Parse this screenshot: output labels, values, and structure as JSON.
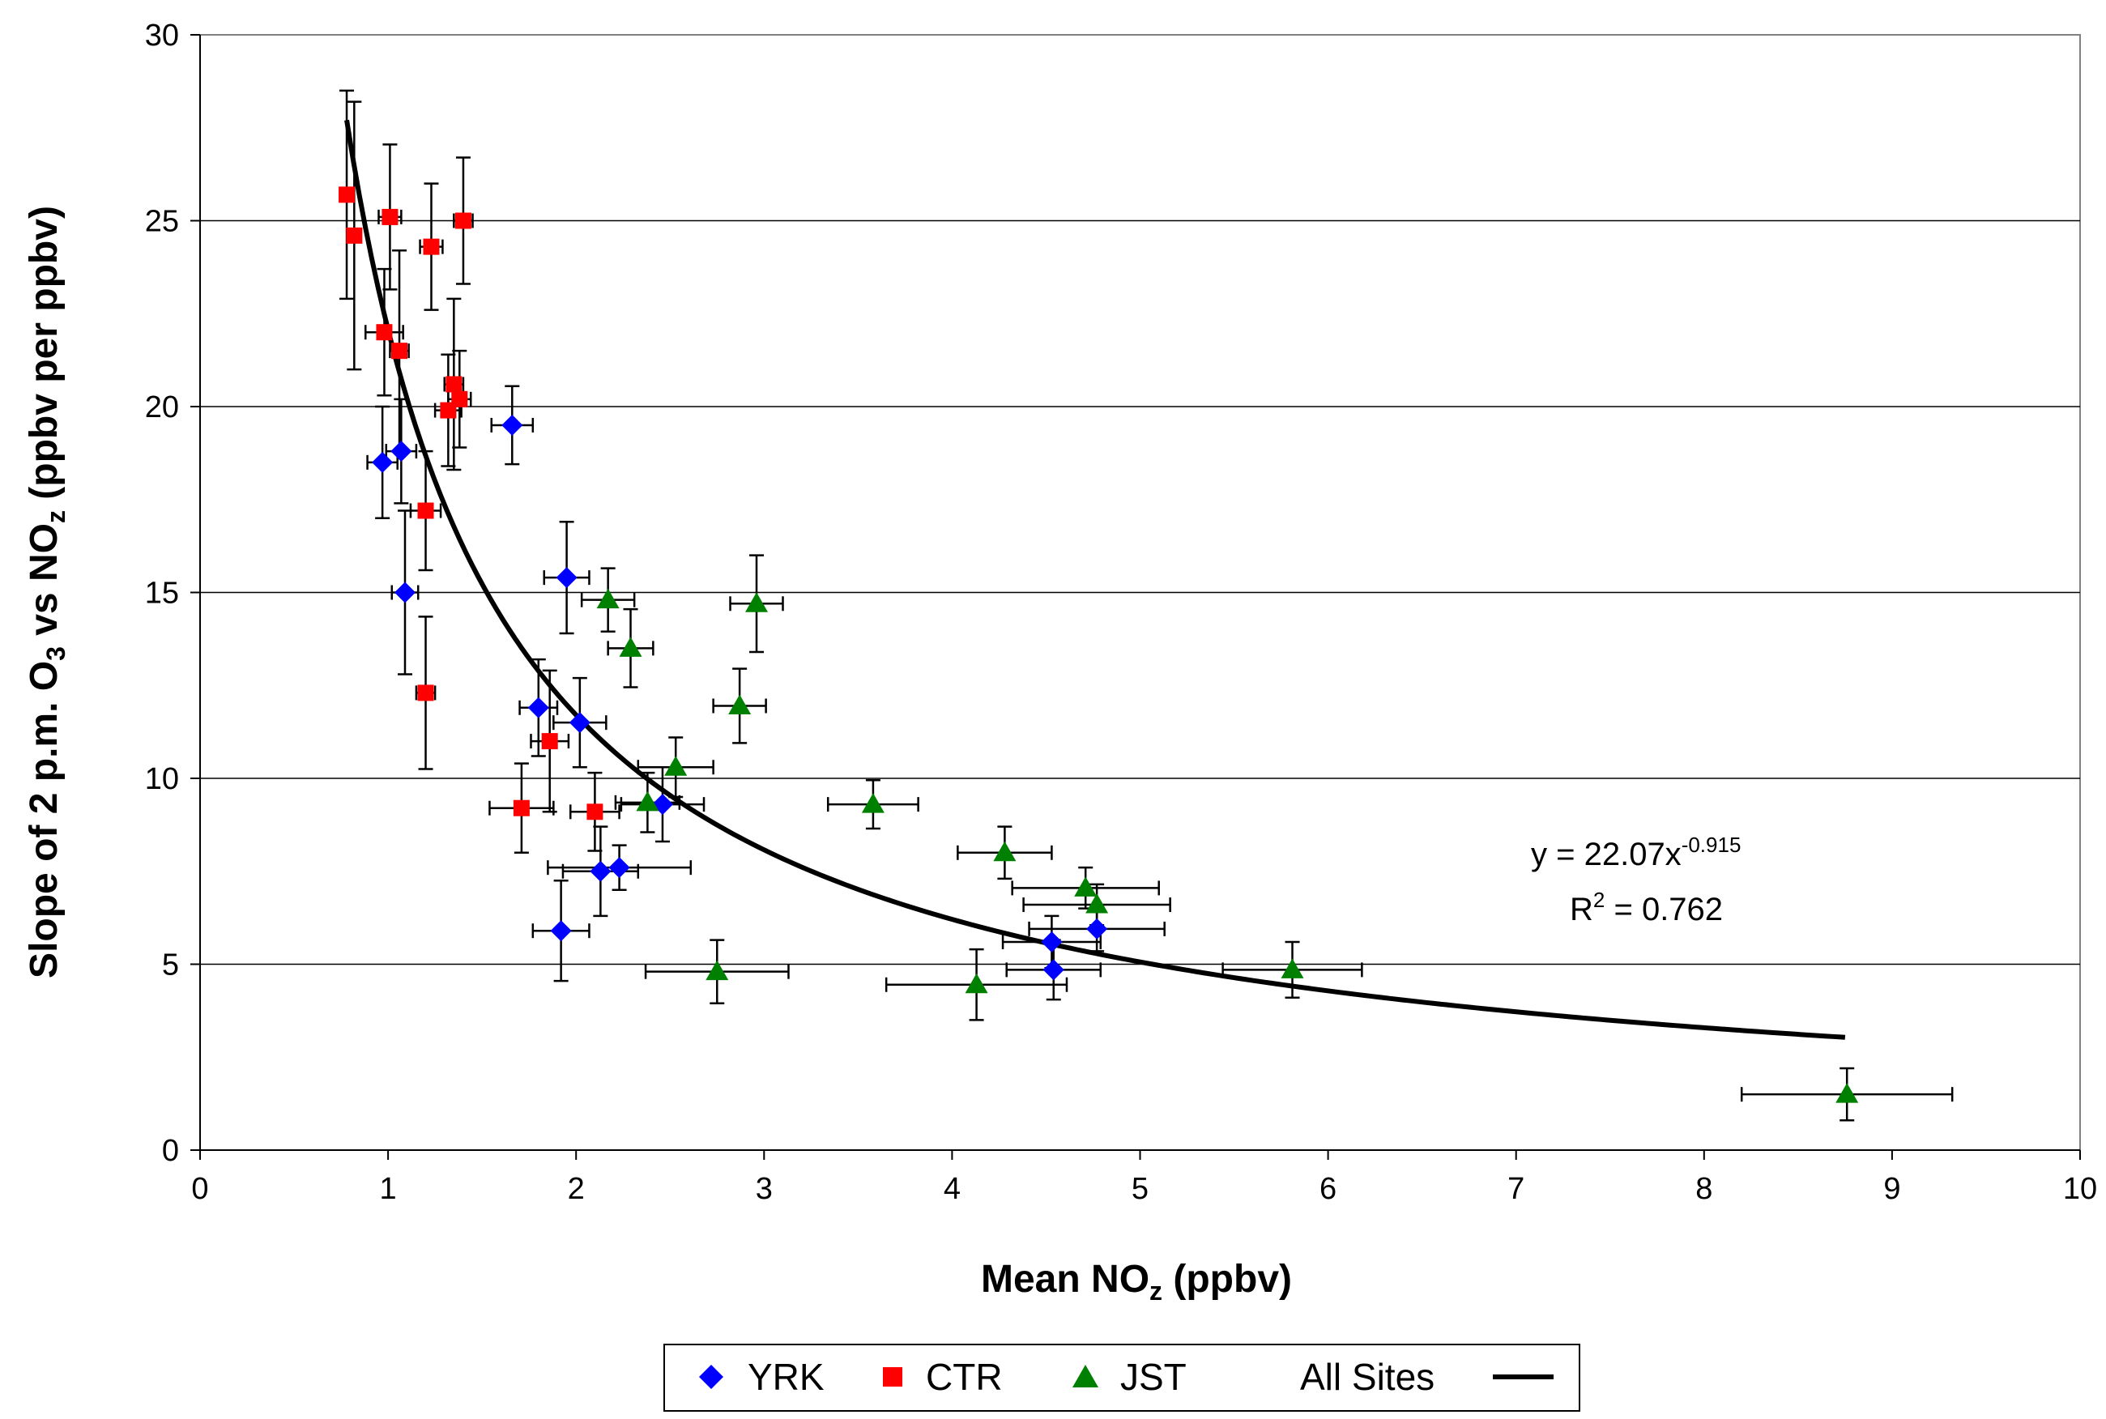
{
  "chart_data": {
    "type": "scatter",
    "title": "",
    "xlabel": {
      "main": "Mean NO",
      "sub": "z",
      "tail": " (ppbv)"
    },
    "ylabel": {
      "p1": "Slope of 2 p.m. O",
      "sub1": "3",
      "p2": " vs NO",
      "sub2": "z",
      "p3": " (ppbv per ppbv)"
    },
    "xlim": [
      0,
      10
    ],
    "ylim": [
      0,
      30
    ],
    "x_ticks": [
      "0",
      "1",
      "2",
      "3",
      "4",
      "5",
      "6",
      "7",
      "8",
      "9",
      "10"
    ],
    "y_ticks": [
      "0",
      "5",
      "10",
      "15",
      "20",
      "25",
      "30"
    ],
    "grid": "horizontal",
    "equation": {
      "prefix": "y = 22.07x",
      "exponent": "-0.915"
    },
    "r_squared": {
      "prefix": "R",
      "exponent": "2",
      "suffix": " = 0.762"
    },
    "fit": {
      "name": "All Sites",
      "a": 22.07,
      "b": -0.915,
      "x_range": [
        0.78,
        8.75
      ],
      "color": "#000000"
    },
    "series": [
      {
        "name": "YRK",
        "marker": "diamond",
        "color": "#0000FF",
        "points": [
          {
            "x": 0.97,
            "y": 18.5,
            "xerr": 0.08,
            "yerr": 1.5
          },
          {
            "x": 1.07,
            "y": 18.8,
            "xerr": 0.08,
            "yerr": 1.4
          },
          {
            "x": 1.09,
            "y": 15.0,
            "xerr": 0.07,
            "yerr": 2.2
          },
          {
            "x": 1.66,
            "y": 19.5,
            "xerr": 0.11,
            "yerr": 1.05
          },
          {
            "x": 1.95,
            "y": 15.4,
            "xerr": 0.12,
            "yerr": 1.5
          },
          {
            "x": 1.8,
            "y": 11.9,
            "xerr": 0.1,
            "yerr": 1.3
          },
          {
            "x": 2.02,
            "y": 11.5,
            "xerr": 0.14,
            "yerr": 1.2
          },
          {
            "x": 2.13,
            "y": 7.5,
            "xerr": 0.2,
            "yerr": 1.2
          },
          {
            "x": 2.23,
            "y": 7.6,
            "xerr": 0.38,
            "yerr": 0.6
          },
          {
            "x": 2.46,
            "y": 9.3,
            "xerr": 0.22,
            "yerr": 1.0
          },
          {
            "x": 1.92,
            "y": 5.9,
            "xerr": 0.15,
            "yerr": 1.35
          },
          {
            "x": 4.53,
            "y": 5.6,
            "xerr": 0.26,
            "yerr": 0.7
          },
          {
            "x": 4.54,
            "y": 4.85,
            "xerr": 0.25,
            "yerr": 0.8
          },
          {
            "x": 4.77,
            "y": 5.95,
            "xerr": 0.36,
            "yerr": 0.6
          }
        ]
      },
      {
        "name": "CTR",
        "marker": "square",
        "color": "#FF0000",
        "points": [
          {
            "x": 0.78,
            "y": 25.7,
            "xerr": 0.03,
            "yerr": 2.8
          },
          {
            "x": 0.82,
            "y": 24.6,
            "xerr": 0.03,
            "yerr": 3.6
          },
          {
            "x": 1.01,
            "y": 25.1,
            "xerr": 0.06,
            "yerr": 1.95
          },
          {
            "x": 1.23,
            "y": 24.3,
            "xerr": 0.06,
            "yerr": 1.7
          },
          {
            "x": 1.4,
            "y": 25.0,
            "xerr": 0.05,
            "yerr": 1.7
          },
          {
            "x": 0.98,
            "y": 22.0,
            "xerr": 0.1,
            "yerr": 1.7
          },
          {
            "x": 1.06,
            "y": 21.5,
            "xerr": 0.05,
            "yerr": 2.7
          },
          {
            "x": 1.35,
            "y": 20.6,
            "xerr": 0.05,
            "yerr": 2.3
          },
          {
            "x": 1.38,
            "y": 20.2,
            "xerr": 0.06,
            "yerr": 1.3
          },
          {
            "x": 1.32,
            "y": 19.9,
            "xerr": 0.07,
            "yerr": 1.5
          },
          {
            "x": 1.2,
            "y": 17.2,
            "xerr": 0.08,
            "yerr": 1.6
          },
          {
            "x": 1.2,
            "y": 12.3,
            "xerr": 0.05,
            "yerr": 2.05
          },
          {
            "x": 1.86,
            "y": 11.0,
            "xerr": 0.1,
            "yerr": 1.9
          },
          {
            "x": 1.71,
            "y": 9.2,
            "xerr": 0.17,
            "yerr": 1.2
          },
          {
            "x": 2.1,
            "y": 9.1,
            "xerr": 0.13,
            "yerr": 1.05
          }
        ]
      },
      {
        "name": "JST",
        "marker": "triangle",
        "color": "#008000",
        "points": [
          {
            "x": 2.17,
            "y": 14.8,
            "xerr": 0.14,
            "yerr": 0.85
          },
          {
            "x": 2.29,
            "y": 13.5,
            "xerr": 0.12,
            "yerr": 1.05
          },
          {
            "x": 2.96,
            "y": 14.7,
            "xerr": 0.14,
            "yerr": 1.3
          },
          {
            "x": 2.87,
            "y": 11.95,
            "xerr": 0.14,
            "yerr": 1.0
          },
          {
            "x": 2.53,
            "y": 10.3,
            "xerr": 0.2,
            "yerr": 0.8
          },
          {
            "x": 2.38,
            "y": 9.35,
            "xerr": 0.17,
            "yerr": 0.8
          },
          {
            "x": 3.58,
            "y": 9.3,
            "xerr": 0.24,
            "yerr": 0.65
          },
          {
            "x": 4.28,
            "y": 8.0,
            "xerr": 0.25,
            "yerr": 0.7
          },
          {
            "x": 4.71,
            "y": 7.05,
            "xerr": 0.39,
            "yerr": 0.55
          },
          {
            "x": 4.77,
            "y": 6.6,
            "xerr": 0.39,
            "yerr": 0.55
          },
          {
            "x": 2.75,
            "y": 4.8,
            "xerr": 0.38,
            "yerr": 0.85
          },
          {
            "x": 4.13,
            "y": 4.45,
            "xerr": 0.48,
            "yerr": 0.95
          },
          {
            "x": 5.81,
            "y": 4.85,
            "xerr": 0.37,
            "yerr": 0.75
          },
          {
            "x": 8.76,
            "y": 1.5,
            "xerr": 0.56,
            "yerr": 0.7
          }
        ]
      }
    ],
    "legend": {
      "placement": "bottom",
      "items": [
        {
          "label": "YRK",
          "marker": "diamond",
          "color": "#0000FF"
        },
        {
          "label": "CTR",
          "marker": "square",
          "color": "#FF0000"
        },
        {
          "label": "JST",
          "marker": "triangle",
          "color": "#008000"
        },
        {
          "label": "All Sites",
          "marker": "line",
          "color": "#000000"
        }
      ]
    }
  }
}
